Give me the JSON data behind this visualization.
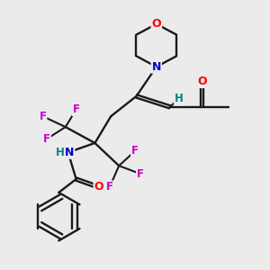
{
  "bg_color": "#ebebeb",
  "bond_color": "#1a1a1a",
  "atom_colors": {
    "O": "#ff0000",
    "N": "#0000cc",
    "F": "#cc00cc",
    "H": "#008080",
    "C": "#1a1a1a"
  }
}
